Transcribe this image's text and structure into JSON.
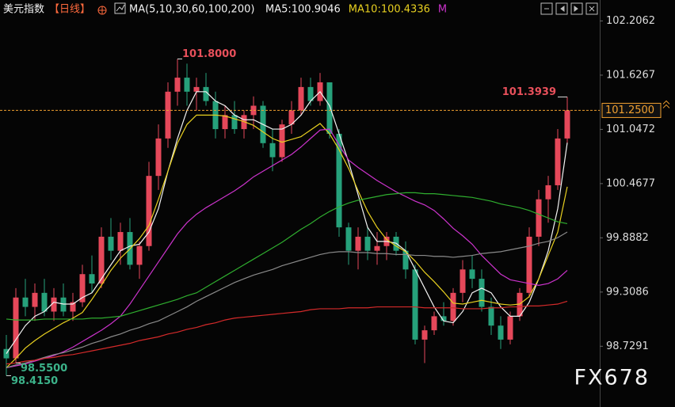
{
  "chart_data": {
    "type": "candlestick",
    "title": "美元指数",
    "period": "【日线】",
    "ma_label": "MA(5,10,30,60,100,200)",
    "legend": [
      {
        "label": "MA5:100.9046",
        "color": "#f2f2f2"
      },
      {
        "label": "MA10:100.4336",
        "color": "#e8d020"
      },
      {
        "label": "M",
        "color": "#cc33cc"
      }
    ],
    "watermark": "FX678",
    "up_color": "#e5485a",
    "down_color": "#26a17b",
    "ylim": [
      98.08,
      102.43
    ],
    "yticks": [
      102.2062,
      101.6267,
      101.0472,
      100.4677,
      99.8882,
      99.3086,
      98.7291
    ],
    "current_price": {
      "value": 101.25,
      "label": "101.2500",
      "color": "#f0a030"
    },
    "extreme_labels": [
      {
        "value": 101.8,
        "label": "101.8000",
        "kind": "high",
        "color": "#e8505b"
      },
      {
        "value": 101.3939,
        "label": "101.3939",
        "kind": "high",
        "color": "#e8505b"
      },
      {
        "value": 98.55,
        "label": "98.5500",
        "kind": "low",
        "color": "#3cb38a"
      },
      {
        "value": 98.415,
        "label": "98.4150",
        "kind": "low",
        "color": "#3cb38a"
      }
    ],
    "open": [
      98.7,
      98.6,
      99.25,
      99.15,
      99.3,
      99.1,
      99.25,
      99.1,
      99.2,
      99.5,
      99.4,
      99.9,
      99.75,
      99.95,
      99.6,
      99.8,
      100.55,
      100.95,
      101.45,
      101.6,
      101.45,
      101.5,
      101.35,
      101.05,
      101.2,
      101.05,
      101.2,
      101.3,
      100.9,
      100.75,
      101.1,
      101.25,
      101.5,
      101.35,
      101.55,
      101.0,
      100.0,
      99.75,
      99.9,
      99.75,
      99.8,
      99.9,
      99.75,
      99.55,
      98.8,
      98.9,
      99.05,
      99.0,
      99.3,
      99.55,
      99.45,
      99.15,
      98.95,
      98.8,
      99.05,
      99.3,
      99.9,
      100.3,
      100.45,
      100.95
    ],
    "high": [
      98.85,
      99.35,
      99.45,
      99.4,
      99.45,
      99.35,
      99.4,
      99.3,
      99.6,
      99.7,
      100.0,
      100.1,
      100.05,
      100.1,
      99.85,
      100.7,
      101.1,
      101.55,
      101.8,
      101.75,
      101.6,
      101.65,
      101.45,
      101.3,
      101.35,
      101.25,
      101.4,
      101.35,
      101.05,
      101.15,
      101.35,
      101.6,
      101.6,
      101.65,
      101.55,
      101.05,
      100.05,
      100.0,
      100.0,
      99.95,
      99.95,
      99.95,
      99.85,
      99.6,
      98.95,
      99.1,
      99.2,
      99.35,
      99.65,
      99.7,
      99.55,
      99.25,
      99.05,
      99.1,
      99.35,
      100.0,
      100.4,
      100.55,
      101.05,
      101.3939
    ],
    "low": [
      98.415,
      98.55,
      99.05,
      99.0,
      99.05,
      99.0,
      99.05,
      99.0,
      99.15,
      99.3,
      99.35,
      99.65,
      99.6,
      99.55,
      99.45,
      99.75,
      100.4,
      100.85,
      101.3,
      101.3,
      101.25,
      101.3,
      100.95,
      100.95,
      101.0,
      100.95,
      101.05,
      100.85,
      100.6,
      100.7,
      101.0,
      101.2,
      101.3,
      101.3,
      100.95,
      99.9,
      99.6,
      99.55,
      99.65,
      99.6,
      99.65,
      99.7,
      99.45,
      98.75,
      98.55,
      98.85,
      98.95,
      98.95,
      99.2,
      99.35,
      99.1,
      98.85,
      98.7,
      98.75,
      99.0,
      99.25,
      99.8,
      100.05,
      100.4,
      100.9
    ],
    "close": [
      98.6,
      99.25,
      99.15,
      99.3,
      99.1,
      99.25,
      99.1,
      99.2,
      99.5,
      99.4,
      99.9,
      99.75,
      99.95,
      99.6,
      99.8,
      100.55,
      100.95,
      101.45,
      101.6,
      101.45,
      101.5,
      101.35,
      101.05,
      101.2,
      101.05,
      101.2,
      101.3,
      100.9,
      100.75,
      101.1,
      101.25,
      101.5,
      101.35,
      101.55,
      101.0,
      100.0,
      99.75,
      99.9,
      99.75,
      99.8,
      99.9,
      99.75,
      99.55,
      98.8,
      98.9,
      99.05,
      99.0,
      99.3,
      99.55,
      99.45,
      99.15,
      98.95,
      98.8,
      99.05,
      99.3,
      99.9,
      100.3,
      100.45,
      100.95,
      101.25
    ],
    "ma_lines": [
      {
        "color": "#f2f2f2",
        "values": [
          98.65,
          98.8,
          98.95,
          99.05,
          99.1,
          99.2,
          99.18,
          99.18,
          99.25,
          99.3,
          99.45,
          99.6,
          99.75,
          99.8,
          99.82,
          99.95,
          100.2,
          100.6,
          100.95,
          101.25,
          101.45,
          101.45,
          101.35,
          101.3,
          101.2,
          101.15,
          101.15,
          101.1,
          101.05,
          101.05,
          101.1,
          101.2,
          101.35,
          101.45,
          101.3,
          101.0,
          100.7,
          100.35,
          100.0,
          99.85,
          99.85,
          99.83,
          99.75,
          99.55,
          99.35,
          99.15,
          99.0,
          98.98,
          99.1,
          99.3,
          99.35,
          99.3,
          99.15,
          99.05,
          99.05,
          99.2,
          99.45,
          99.75,
          100.2,
          100.9046
        ]
      },
      {
        "color": "#e8d020",
        "values": [
          98.5,
          98.6,
          98.71,
          98.79,
          98.86,
          98.92,
          98.98,
          99.03,
          99.09,
          99.23,
          99.38,
          99.54,
          99.67,
          99.77,
          99.88,
          100.02,
          100.3,
          100.6,
          100.9,
          101.1,
          101.2,
          101.2,
          101.2,
          101.19,
          101.16,
          101.13,
          101.09,
          101.02,
          100.95,
          100.91,
          100.94,
          100.97,
          101.04,
          101.11,
          101.0,
          100.83,
          100.63,
          100.39,
          100.17,
          100.0,
          99.87,
          99.8,
          99.74,
          99.64,
          99.52,
          99.42,
          99.31,
          99.19,
          99.18,
          99.2,
          99.22,
          99.2,
          99.18,
          99.17,
          99.18,
          99.26,
          99.45,
          99.7,
          99.95,
          100.4336
        ]
      },
      {
        "color": "#cc33cc",
        "values": [
          98.5,
          98.52,
          98.54,
          98.57,
          98.6,
          98.63,
          98.67,
          98.72,
          98.78,
          98.84,
          98.9,
          98.97,
          99.05,
          99.18,
          99.33,
          99.48,
          99.63,
          99.78,
          99.93,
          100.05,
          100.14,
          100.21,
          100.27,
          100.33,
          100.39,
          100.46,
          100.54,
          100.6,
          100.66,
          100.72,
          100.78,
          100.86,
          100.95,
          101.04,
          101.05,
          100.88,
          100.72,
          100.64,
          100.57,
          100.5,
          100.44,
          100.38,
          100.33,
          100.28,
          100.24,
          100.18,
          100.09,
          99.99,
          99.91,
          99.82,
          99.7,
          99.6,
          99.5,
          99.44,
          99.42,
          99.4,
          99.38,
          99.4,
          99.45,
          99.54
        ]
      },
      {
        "color": "#2fae2f",
        "values": [
          99.02,
          99.01,
          99.01,
          99.01,
          99.02,
          99.02,
          99.02,
          99.02,
          99.02,
          99.03,
          99.03,
          99.04,
          99.05,
          99.08,
          99.11,
          99.14,
          99.17,
          99.2,
          99.23,
          99.27,
          99.3,
          99.36,
          99.42,
          99.48,
          99.54,
          99.6,
          99.66,
          99.72,
          99.78,
          99.84,
          99.91,
          99.98,
          100.04,
          100.11,
          100.17,
          100.22,
          100.26,
          100.29,
          100.31,
          100.33,
          100.35,
          100.36,
          100.37,
          100.37,
          100.36,
          100.36,
          100.35,
          100.34,
          100.33,
          100.32,
          100.3,
          100.28,
          100.25,
          100.23,
          100.21,
          100.18,
          100.14,
          100.1,
          100.06,
          100.04
        ]
      },
      {
        "color": "#8a8a8a",
        "values": [
          98.5,
          98.53,
          98.55,
          98.58,
          98.61,
          98.64,
          98.66,
          98.69,
          98.72,
          98.76,
          98.79,
          98.83,
          98.86,
          98.9,
          98.93,
          98.97,
          99.0,
          99.05,
          99.1,
          99.15,
          99.21,
          99.26,
          99.31,
          99.36,
          99.41,
          99.45,
          99.49,
          99.52,
          99.55,
          99.59,
          99.62,
          99.65,
          99.68,
          99.71,
          99.73,
          99.74,
          99.74,
          99.73,
          99.73,
          99.72,
          99.72,
          99.71,
          99.71,
          99.7,
          99.7,
          99.69,
          99.69,
          99.68,
          99.69,
          99.7,
          99.72,
          99.73,
          99.74,
          99.76,
          99.78,
          99.8,
          99.83,
          99.85,
          99.89,
          99.95
        ]
      },
      {
        "color": "#d42a2a",
        "values": [
          98.54,
          98.55,
          98.57,
          98.58,
          98.6,
          98.61,
          98.63,
          98.64,
          98.66,
          98.68,
          98.7,
          98.72,
          98.74,
          98.76,
          98.79,
          98.81,
          98.83,
          98.86,
          98.88,
          98.91,
          98.93,
          98.96,
          98.98,
          99.01,
          99.03,
          99.04,
          99.05,
          99.06,
          99.07,
          99.08,
          99.09,
          99.1,
          99.12,
          99.13,
          99.13,
          99.13,
          99.14,
          99.14,
          99.14,
          99.15,
          99.15,
          99.15,
          99.15,
          99.15,
          99.14,
          99.14,
          99.14,
          99.14,
          99.13,
          99.13,
          99.13,
          99.14,
          99.14,
          99.15,
          99.15,
          99.16,
          99.16,
          99.17,
          99.18,
          99.21
        ]
      }
    ]
  }
}
